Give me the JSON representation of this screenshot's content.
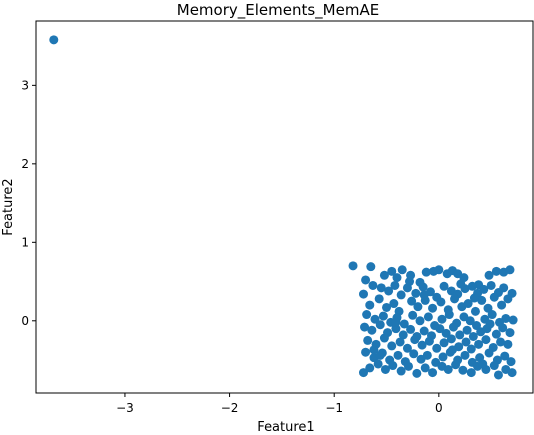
{
  "chart_data": {
    "type": "scatter",
    "title": "Memory_Elements_MemAE",
    "xlabel": "Feature1",
    "ylabel": "Feature2",
    "xlim": [
      -3.85,
      0.9
    ],
    "ylim": [
      -0.92,
      3.82
    ],
    "xticks": [
      -3,
      -2,
      -1,
      0
    ],
    "xtick_labels": [
      "−3",
      "−2",
      "−1",
      "0"
    ],
    "yticks": [
      0,
      1,
      2,
      3
    ],
    "ytick_labels": [
      "0",
      "1",
      "2",
      "3"
    ],
    "grid": false,
    "legend": "none",
    "colors": {
      "points": "#1f77b4"
    },
    "series": [
      {
        "points": [
          [
            -3.68,
            3.58
          ],
          [
            -0.82,
            0.7
          ],
          [
            -0.65,
            0.69
          ],
          [
            -0.52,
            0.58
          ],
          [
            -0.45,
            0.63
          ],
          [
            -0.4,
            0.55
          ],
          [
            -0.35,
            0.65
          ],
          [
            -0.28,
            0.5
          ],
          [
            -0.18,
            0.49
          ],
          [
            -0.12,
            0.62
          ],
          [
            -0.05,
            0.63
          ],
          [
            0.0,
            0.65
          ],
          [
            0.08,
            0.6
          ],
          [
            0.13,
            0.64
          ],
          [
            0.18,
            0.6
          ],
          [
            0.24,
            0.55
          ],
          [
            0.38,
            0.46
          ],
          [
            0.48,
            0.58
          ],
          [
            0.55,
            0.63
          ],
          [
            0.62,
            0.62
          ],
          [
            0.68,
            0.65
          ],
          [
            -0.7,
            0.52
          ],
          [
            -0.63,
            0.45
          ],
          [
            -0.55,
            0.42
          ],
          [
            -0.48,
            0.38
          ],
          [
            -0.42,
            0.45
          ],
          [
            -0.36,
            0.33
          ],
          [
            -0.3,
            0.42
          ],
          [
            -0.22,
            0.35
          ],
          [
            -0.15,
            0.43
          ],
          [
            -0.08,
            0.37
          ],
          [
            -0.02,
            0.3
          ],
          [
            0.05,
            0.44
          ],
          [
            0.12,
            0.38
          ],
          [
            0.18,
            0.34
          ],
          [
            0.25,
            0.41
          ],
          [
            0.32,
            0.44
          ],
          [
            0.37,
            0.35
          ],
          [
            0.43,
            0.4
          ],
          [
            0.5,
            0.45
          ],
          [
            0.57,
            0.36
          ],
          [
            0.62,
            0.42
          ],
          [
            0.7,
            0.35
          ],
          [
            -0.72,
            0.34
          ],
          [
            -0.66,
            0.2
          ],
          [
            -0.57,
            0.28
          ],
          [
            -0.5,
            0.17
          ],
          [
            -0.43,
            0.22
          ],
          [
            -0.38,
            0.12
          ],
          [
            -0.26,
            0.25
          ],
          [
            -0.2,
            0.18
          ],
          [
            -0.13,
            0.26
          ],
          [
            -0.06,
            0.16
          ],
          [
            0.02,
            0.24
          ],
          [
            0.09,
            0.14
          ],
          [
            0.15,
            0.28
          ],
          [
            0.22,
            0.18
          ],
          [
            0.28,
            0.22
          ],
          [
            0.35,
            0.12
          ],
          [
            0.41,
            0.26
          ],
          [
            0.47,
            0.16
          ],
          [
            0.53,
            0.3
          ],
          [
            0.6,
            0.2
          ],
          [
            0.66,
            0.28
          ],
          [
            -0.69,
            0.08
          ],
          [
            -0.61,
            0.02
          ],
          [
            -0.53,
            0.06
          ],
          [
            -0.46,
            -0.02
          ],
          [
            -0.4,
            0.04
          ],
          [
            -0.33,
            -0.04
          ],
          [
            -0.25,
            0.07
          ],
          [
            -0.18,
            0.0
          ],
          [
            -0.1,
            0.05
          ],
          [
            -0.04,
            -0.06
          ],
          [
            0.03,
            0.02
          ],
          [
            0.1,
            0.08
          ],
          [
            0.17,
            -0.03
          ],
          [
            0.24,
            0.05
          ],
          [
            0.3,
            0.0
          ],
          [
            0.36,
            -0.06
          ],
          [
            0.44,
            0.02
          ],
          [
            0.51,
            0.08
          ],
          [
            0.58,
            -0.02
          ],
          [
            0.64,
            0.03
          ],
          [
            0.71,
            0.01
          ],
          [
            -0.71,
            -0.08
          ],
          [
            -0.64,
            -0.12
          ],
          [
            -0.56,
            -0.05
          ],
          [
            -0.49,
            -0.15
          ],
          [
            -0.41,
            -0.1
          ],
          [
            -0.34,
            -0.18
          ],
          [
            -0.27,
            -0.11
          ],
          [
            -0.21,
            -0.2
          ],
          [
            -0.14,
            -0.13
          ],
          [
            -0.07,
            -0.19
          ],
          [
            0.01,
            -0.1
          ],
          [
            0.07,
            -0.16
          ],
          [
            0.14,
            -0.08
          ],
          [
            0.2,
            -0.18
          ],
          [
            0.27,
            -0.12
          ],
          [
            0.33,
            -0.2
          ],
          [
            0.4,
            -0.14
          ],
          [
            0.46,
            -0.1
          ],
          [
            0.55,
            -0.17
          ],
          [
            0.61,
            -0.09
          ],
          [
            0.68,
            -0.15
          ],
          [
            -0.68,
            -0.25
          ],
          [
            -0.6,
            -0.3
          ],
          [
            -0.52,
            -0.22
          ],
          [
            -0.45,
            -0.32
          ],
          [
            -0.37,
            -0.27
          ],
          [
            -0.3,
            -0.35
          ],
          [
            -0.23,
            -0.24
          ],
          [
            -0.16,
            -0.31
          ],
          [
            -0.09,
            -0.26
          ],
          [
            -0.02,
            -0.35
          ],
          [
            0.05,
            -0.28
          ],
          [
            0.12,
            -0.23
          ],
          [
            0.19,
            -0.33
          ],
          [
            0.26,
            -0.27
          ],
          [
            0.31,
            -0.36
          ],
          [
            0.38,
            -0.3
          ],
          [
            0.45,
            -0.24
          ],
          [
            0.52,
            -0.34
          ],
          [
            0.59,
            -0.27
          ],
          [
            0.66,
            -0.3
          ],
          [
            -0.7,
            -0.4
          ],
          [
            -0.62,
            -0.47
          ],
          [
            -0.54,
            -0.41
          ],
          [
            -0.47,
            -0.5
          ],
          [
            -0.39,
            -0.44
          ],
          [
            -0.32,
            -0.52
          ],
          [
            -0.24,
            -0.42
          ],
          [
            -0.17,
            -0.49
          ],
          [
            -0.11,
            -0.44
          ],
          [
            -0.03,
            -0.53
          ],
          [
            0.04,
            -0.46
          ],
          [
            0.11,
            -0.4
          ],
          [
            0.18,
            -0.5
          ],
          [
            0.25,
            -0.44
          ],
          [
            0.32,
            -0.53
          ],
          [
            0.39,
            -0.47
          ],
          [
            0.48,
            -0.41
          ],
          [
            0.56,
            -0.5
          ],
          [
            0.63,
            -0.45
          ],
          [
            0.69,
            -0.52
          ],
          [
            -0.72,
            -0.66
          ],
          [
            -0.66,
            -0.6
          ],
          [
            -0.58,
            -0.55
          ],
          [
            -0.51,
            -0.62
          ],
          [
            -0.44,
            -0.57
          ],
          [
            -0.36,
            -0.64
          ],
          [
            -0.29,
            -0.58
          ],
          [
            -0.21,
            -0.67
          ],
          [
            -0.13,
            -0.6
          ],
          [
            -0.06,
            -0.66
          ],
          [
            0.03,
            -0.58
          ],
          [
            0.09,
            -0.62
          ],
          [
            0.16,
            -0.56
          ],
          [
            0.23,
            -0.63
          ],
          [
            0.31,
            -0.66
          ],
          [
            0.37,
            -0.58
          ],
          [
            0.45,
            -0.62
          ],
          [
            0.53,
            -0.57
          ],
          [
            0.57,
            -0.69
          ],
          [
            0.64,
            -0.62
          ],
          [
            0.7,
            -0.66
          ],
          [
            -0.62,
            -0.37
          ],
          [
            -0.41,
            -0.02
          ],
          [
            -0.14,
            0.33
          ],
          [
            0.13,
            -0.37
          ],
          [
            0.34,
            0.29
          ],
          [
            0.49,
            -0.04
          ],
          [
            -0.27,
            0.58
          ],
          [
            0.21,
            0.47
          ],
          [
            -0.56,
            -0.44
          ],
          [
            0.42,
            -0.55
          ]
        ]
      }
    ]
  }
}
